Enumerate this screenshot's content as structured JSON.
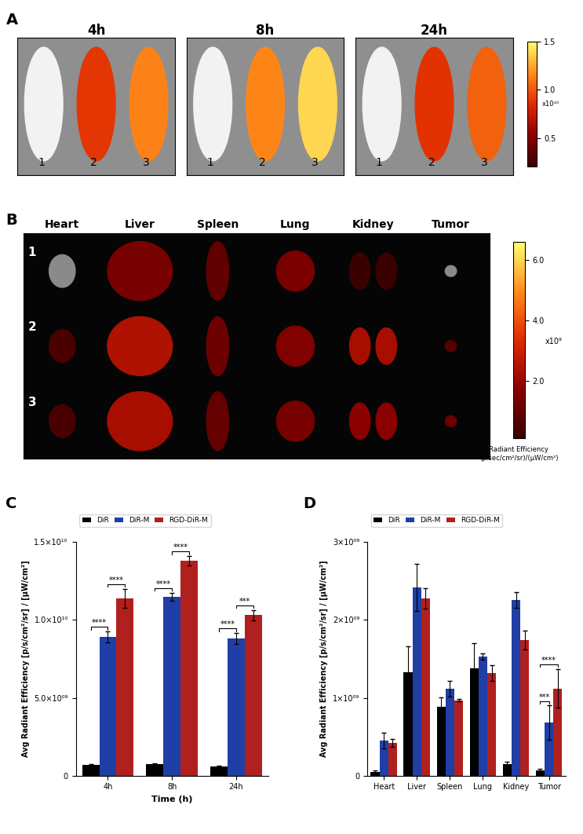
{
  "panel_labels": [
    "A",
    "B",
    "C",
    "D"
  ],
  "imaging": {
    "timepoints": [
      "4h",
      "8h",
      "24h"
    ],
    "mice": [
      "1",
      "2",
      "3"
    ],
    "colorbar": {
      "clim": [
        2000000000,
        15000000000
      ],
      "ticks": [
        {
          "value": 5000000000,
          "label": "0.5"
        },
        {
          "value": 10000000000,
          "label": "1.0"
        },
        {
          "value": 15000000000,
          "label": "1.5"
        }
      ],
      "multiplier": "x10¹⁰"
    }
  },
  "ex_vivo": {
    "organs": [
      "Heart",
      "Liver",
      "Spleen",
      "Lung",
      "Kidney",
      "Tumor"
    ],
    "groups": [
      "1",
      "2",
      "3"
    ],
    "colorbar": {
      "clim": [
        100000000,
        6600000000
      ],
      "ticks": [
        {
          "value": 2000000000,
          "label": "2.0"
        },
        {
          "value": 4000000000,
          "label": "4.0"
        },
        {
          "value": 6000000000,
          "label": "6.0"
        }
      ],
      "multiplier": "x10⁹",
      "label": "Radiant Efficiency\n(p/sec/cm²/sr)/(µW/cm²)"
    }
  },
  "chart_data": [
    {
      "type": "bar",
      "x_label": "Time (h)",
      "y_label": "Avg Radiant Efficiency [p/s/cm²/sr] / [µW/cm²]",
      "categories": [
        "4h",
        "8h",
        "24h"
      ],
      "series": [
        {
          "name": "DiR",
          "color": "#000000",
          "values": [
            700000000,
            750000000,
            600000000
          ],
          "errors": [
            30000000,
            30000000,
            30000000
          ]
        },
        {
          "name": "DiR-M",
          "color": "#1f3fa6",
          "values": [
            8900000000,
            11500000000,
            8800000000
          ],
          "errors": [
            350000000,
            250000000,
            350000000
          ]
        },
        {
          "name": "RGD-DiR-M",
          "color": "#b0201e",
          "values": [
            11400000000,
            13800000000,
            10300000000
          ],
          "errors": [
            600000000,
            300000000,
            350000000
          ]
        }
      ],
      "ylim": [
        0,
        15000000000
      ],
      "yticks": [
        0,
        {
          "value": 5000000000,
          "label": "5.0×10⁰⁹"
        },
        {
          "value": 10000000000,
          "label": "1.0×10¹⁰"
        },
        {
          "value": 15000000000,
          "label": "1.5×10¹⁰"
        }
      ],
      "legend": "upper left",
      "annotations": [
        {
          "category": "4h",
          "from": "DiR",
          "to": "DiR-M",
          "label": "****"
        },
        {
          "category": "4h",
          "from": "DiR-M",
          "to": "RGD-DiR-M",
          "label": "****"
        },
        {
          "category": "8h",
          "from": "DiR",
          "to": "DiR-M",
          "label": "****"
        },
        {
          "category": "8h",
          "from": "DiR-M",
          "to": "RGD-DiR-M",
          "label": "****"
        },
        {
          "category": "24h",
          "from": "DiR",
          "to": "DiR-M",
          "label": "****"
        },
        {
          "category": "24h",
          "from": "DiR-M",
          "to": "RGD-DiR-M",
          "label": "***"
        }
      ]
    },
    {
      "type": "bar",
      "y_label": "Avg Radiant Efficiency [p/s/cm²/sr] / [µW/cm²]",
      "categories": [
        "Heart",
        "Liver",
        "Spleen",
        "Lung",
        "Kidney",
        "Tumor"
      ],
      "series": [
        {
          "name": "DiR",
          "color": "#000000",
          "values": [
            50000000,
            1330000000,
            880000000,
            1380000000,
            150000000,
            70000000
          ],
          "errors": [
            20000000,
            330000000,
            130000000,
            320000000,
            30000000,
            20000000
          ]
        },
        {
          "name": "DiR-M",
          "color": "#1f3fa6",
          "values": [
            450000000,
            2420000000,
            1120000000,
            1530000000,
            2260000000,
            680000000
          ],
          "errors": [
            100000000,
            300000000,
            100000000,
            40000000,
            100000000,
            220000000
          ]
        },
        {
          "name": "RGD-DiR-M",
          "color": "#b0201e",
          "values": [
            420000000,
            2280000000,
            970000000,
            1320000000,
            1740000000,
            1120000000
          ],
          "errors": [
            50000000,
            130000000,
            20000000,
            100000000,
            120000000,
            250000000
          ]
        }
      ],
      "ylim": [
        0,
        3000000000
      ],
      "yticks": [
        0,
        {
          "value": 1000000000,
          "label": "1×10⁰⁹"
        },
        {
          "value": 2000000000,
          "label": "2×10⁰⁹"
        },
        {
          "value": 3000000000,
          "label": "3×10⁰⁹"
        }
      ],
      "legend": "upper left",
      "annotations": [
        {
          "category": "Tumor",
          "from": "DiR",
          "to": "DiR-M",
          "label": "***"
        },
        {
          "category": "Tumor",
          "from": "DiR",
          "to": "RGD-DiR-M",
          "label": "****"
        }
      ]
    }
  ]
}
